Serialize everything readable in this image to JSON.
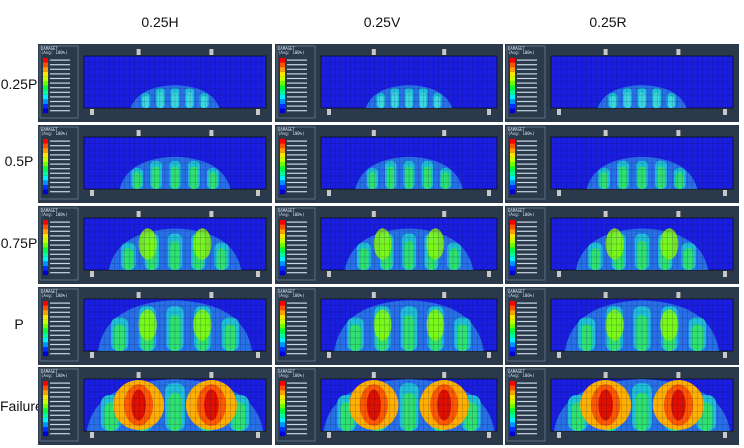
{
  "columns": [
    {
      "label": "0.25H"
    },
    {
      "label": "0.25V"
    },
    {
      "label": "0.25R"
    }
  ],
  "rows": [
    {
      "label": "0.25P",
      "level": 1
    },
    {
      "label": "0.5P",
      "level": 2
    },
    {
      "label": "0.75P",
      "level": 3
    },
    {
      "label": "P",
      "level": 4
    },
    {
      "label": "Failure",
      "level": 5
    }
  ],
  "legend": {
    "title": "DAMAGET",
    "subtitle": "(Avg: 100%)",
    "max_value": "+1.000e+00",
    "min_value": "+0.000e+00",
    "colors": [
      "#ff0000",
      "#ff5000",
      "#ff9f00",
      "#ffe600",
      "#c6ff00",
      "#6cff00",
      "#00ff3a",
      "#00ff9c",
      "#00f0ff",
      "#0090ff",
      "#0030ff",
      "#0000d0"
    ]
  },
  "colors": {
    "panel_bg": "#2b3a4b",
    "beam_base": "#1a1ee0",
    "mesh_line": "#0a0a40"
  }
}
